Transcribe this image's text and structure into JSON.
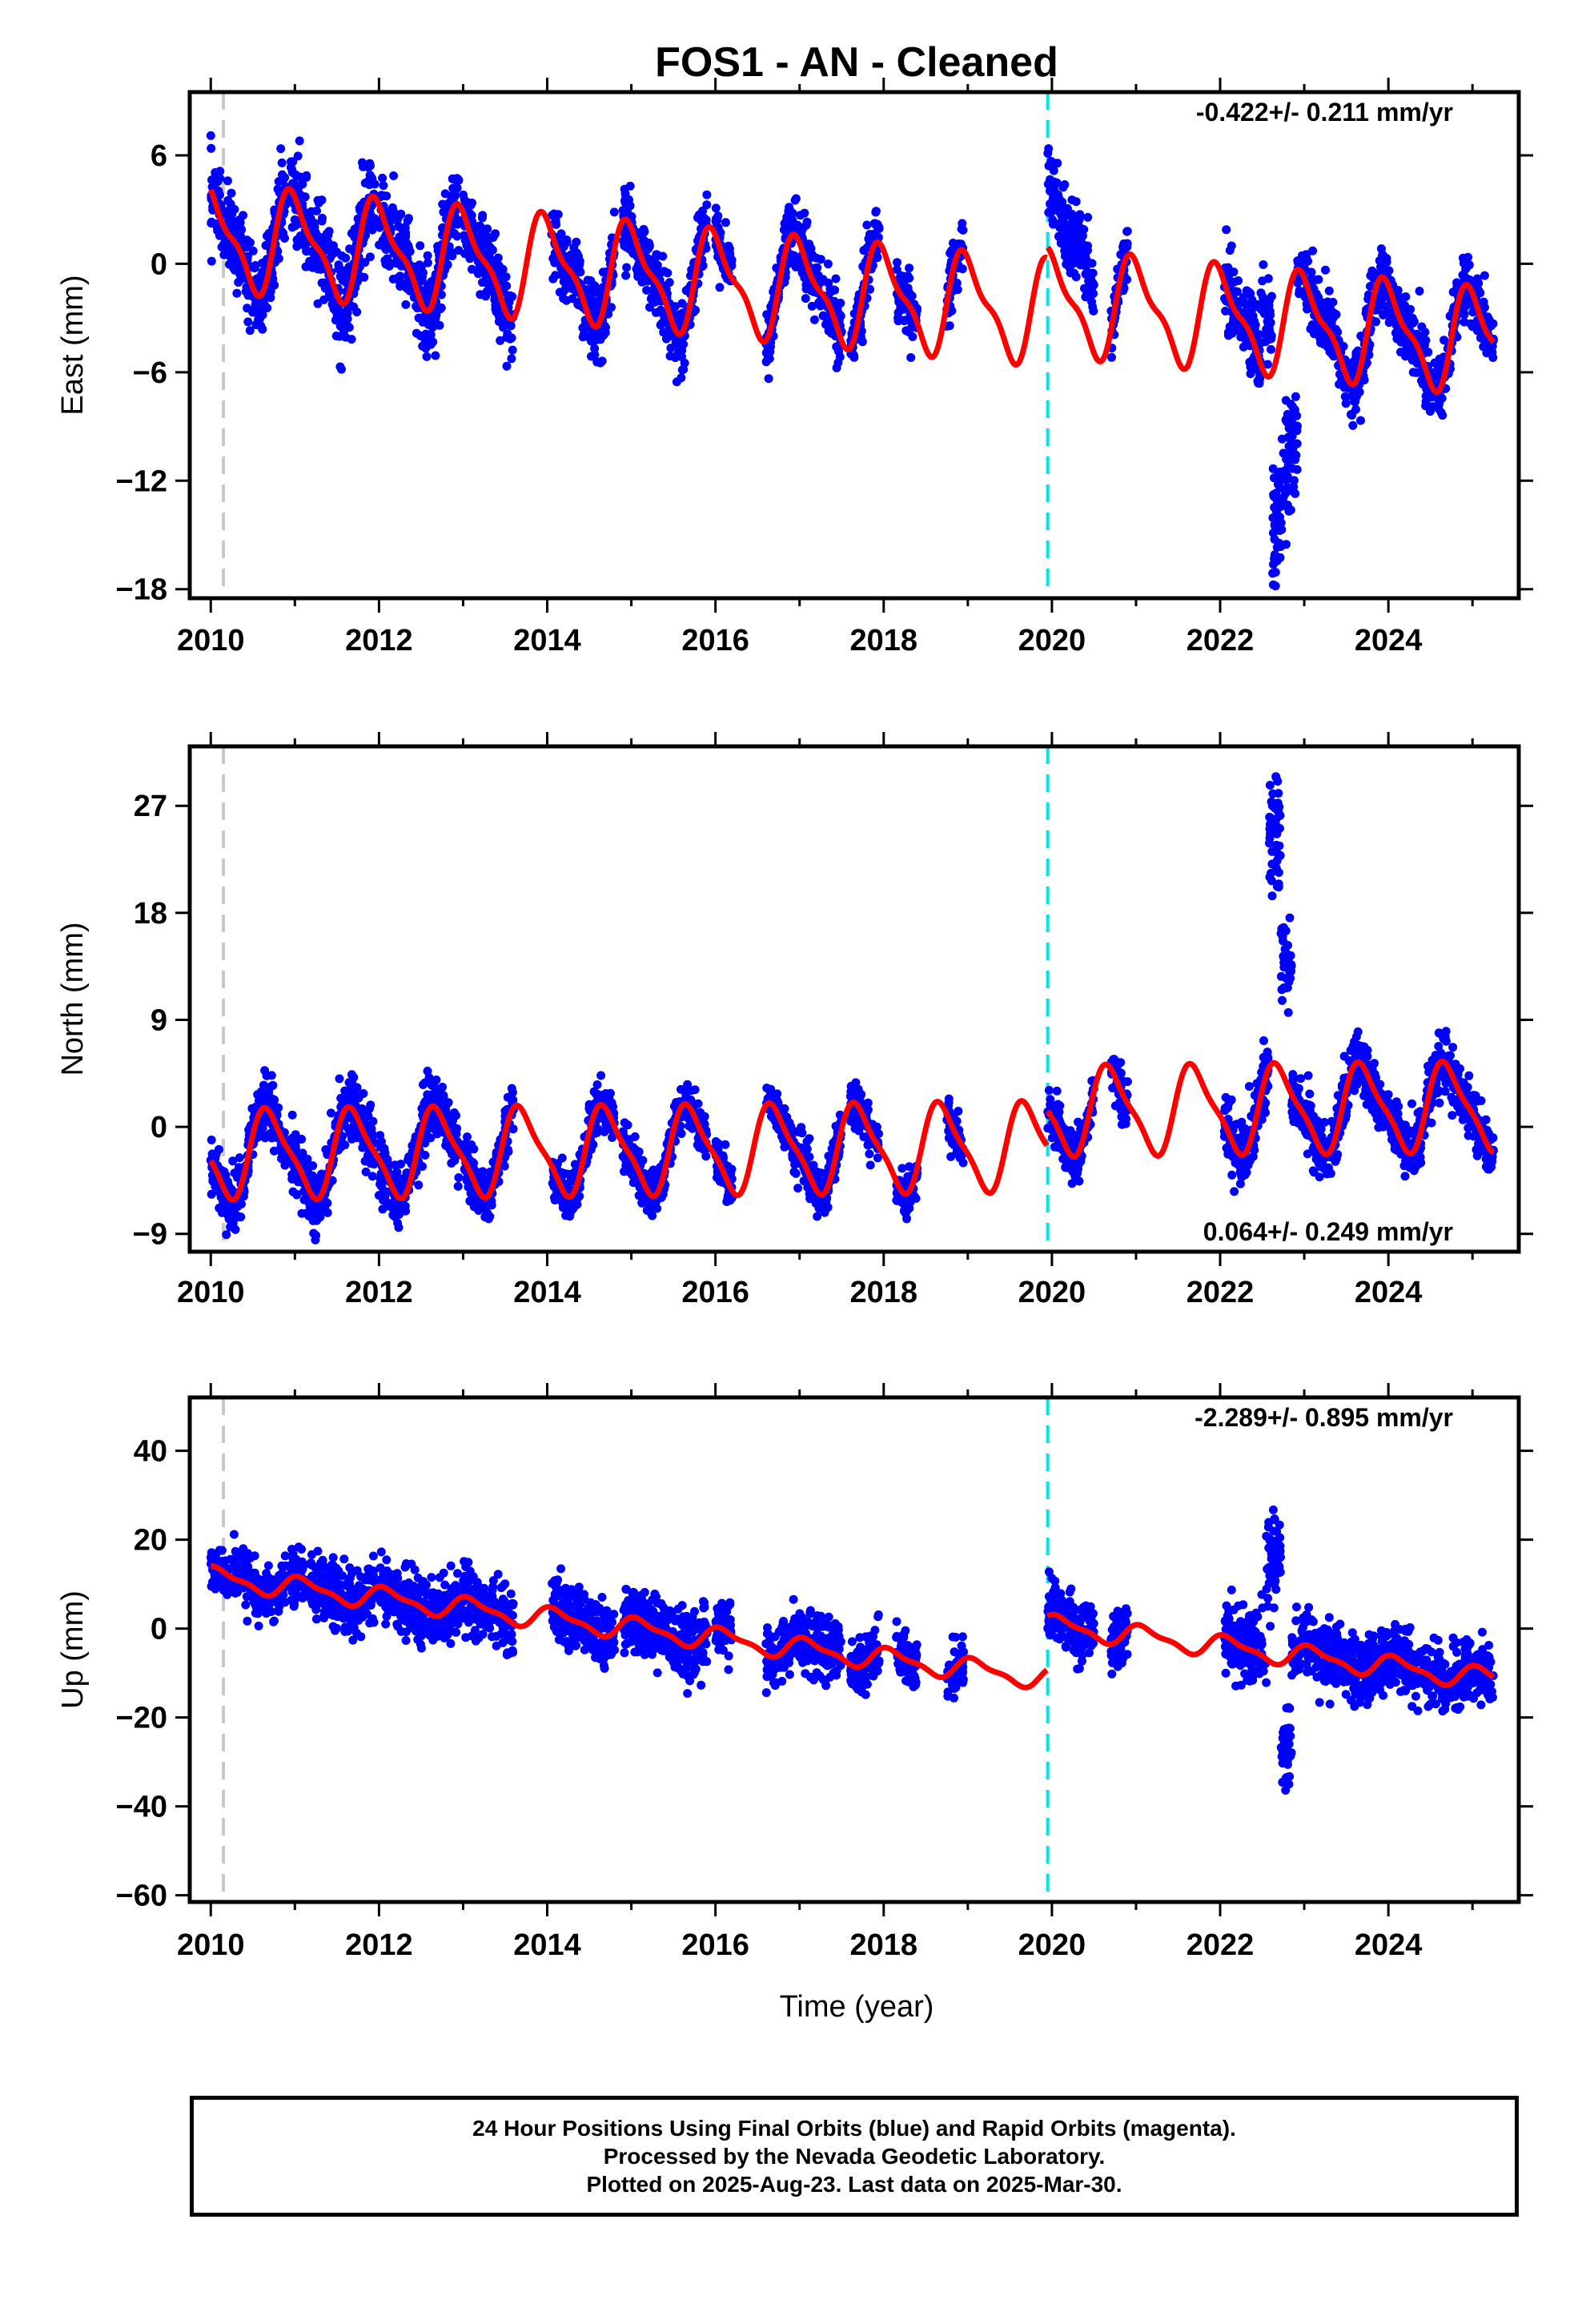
{
  "title": "FOS1  - AN - Cleaned",
  "colors": {
    "data_points": "#0000ff",
    "model_fit": "#ff0000",
    "equipment_change_line": "#c8c8c8",
    "event_line": "#00e5e5",
    "axes": "#000000"
  },
  "xaxis": {
    "label": "Time (year)",
    "range": [
      2009.75,
      2025.55
    ],
    "ticks": [
      2010,
      2012,
      2014,
      2016,
      2018,
      2020,
      2022,
      2024
    ],
    "tick_labels": [
      "2010",
      "2012",
      "2014",
      "2016",
      "2018",
      "2020",
      "2022",
      "2024"
    ]
  },
  "vertical_markers": [
    {
      "year": 2010.15,
      "color": "grey"
    },
    {
      "year": 2019.95,
      "color": "cyan"
    }
  ],
  "chart_data": [
    {
      "type": "scatter",
      "title": "FOS1  - AN - Cleaned",
      "ylabel": "East (mm)",
      "ylim": [
        -18.5,
        9.5
      ],
      "yticks": [
        6,
        0,
        -6,
        -12,
        -18
      ],
      "ytick_labels": [
        "6",
        "0",
        "−6",
        "−12",
        "−18"
      ],
      "rate_label": "-0.422+/- 0.211 mm/yr",
      "rate_position": "top-right",
      "model": {
        "offset": 1.5,
        "rate": -0.422,
        "amp_annual": 2.6,
        "amp_semi": 0.9,
        "phase": 0.25,
        "step_2020": 0.6
      },
      "data_segments": [
        [
          2010.0,
          2010.9,
          2.0
        ],
        [
          2010.95,
          2011.95,
          2.3
        ],
        [
          2012.0,
          2012.95,
          2.2
        ],
        [
          2013.0,
          2013.6,
          2.0
        ],
        [
          2014.05,
          2014.8,
          1.8
        ],
        [
          2014.9,
          2015.9,
          1.7
        ],
        [
          2016.0,
          2016.2,
          1.6
        ],
        [
          2016.6,
          2017.5,
          1.8
        ],
        [
          2017.6,
          2017.95,
          1.5
        ],
        [
          2018.15,
          2018.4,
          1.5
        ],
        [
          2018.75,
          2018.95,
          1.5
        ],
        [
          2019.95,
          2020.5,
          1.5
        ],
        [
          2020.7,
          2020.9,
          1.6
        ],
        [
          2022.05,
          2022.8,
          2.0
        ],
        [
          2022.8,
          2025.25,
          1.6
        ]
      ],
      "anomalies": [
        {
          "start": 2019.95,
          "end": 2020.55,
          "add": 4.5
        },
        {
          "start": 2022.48,
          "end": 2022.62,
          "add": 4.0
        },
        {
          "start": 2022.62,
          "end": 2022.92,
          "add": -11.5
        }
      ],
      "series": [
        {
          "name": "",
          "kind": "points",
          "color": "#0000ff"
        },
        {
          "name": "",
          "kind": "line",
          "color": "#ff0000"
        }
      ]
    },
    {
      "type": "scatter",
      "ylabel": "North (mm)",
      "ylim": [
        -10.5,
        32
      ],
      "yticks": [
        27,
        18,
        9,
        0,
        -9
      ],
      "ytick_labels": [
        "27",
        "18",
        "9",
        "0",
        "−9"
      ],
      "rate_label": "0.064+/- 0.249 mm/yr",
      "rate_position": "bottom-right",
      "model": {
        "offset": -2.3,
        "rate": 0.064,
        "amp_annual": 3.5,
        "amp_semi": 0.9,
        "phase": 0.55,
        "step_2020": 3.0
      },
      "data_segments": [
        [
          2010.0,
          2010.9,
          2.2
        ],
        [
          2010.95,
          2011.95,
          2.3
        ],
        [
          2012.0,
          2012.95,
          2.2
        ],
        [
          2013.0,
          2013.6,
          2.0
        ],
        [
          2014.05,
          2014.8,
          1.8
        ],
        [
          2014.9,
          2015.9,
          1.7
        ],
        [
          2016.0,
          2016.2,
          1.6
        ],
        [
          2016.6,
          2017.5,
          1.8
        ],
        [
          2017.6,
          2017.95,
          1.5
        ],
        [
          2018.15,
          2018.4,
          1.5
        ],
        [
          2018.75,
          2018.95,
          1.5
        ],
        [
          2019.95,
          2020.5,
          2.0
        ],
        [
          2020.7,
          2020.9,
          1.6
        ],
        [
          2022.05,
          2022.55,
          2.5
        ],
        [
          2022.55,
          2025.25,
          2.0
        ]
      ],
      "anomalies": [
        {
          "start": 2022.58,
          "end": 2022.72,
          "add": 24.0
        },
        {
          "start": 2022.72,
          "end": 2022.85,
          "add": 12.0
        }
      ],
      "series": [
        {
          "name": "",
          "kind": "points",
          "color": "#0000ff"
        },
        {
          "name": "",
          "kind": "line",
          "color": "#ff0000"
        }
      ]
    },
    {
      "type": "scatter",
      "ylabel": "Up (mm)",
      "ylim": [
        -61.5,
        52
      ],
      "yticks": [
        40,
        20,
        0,
        -20,
        -40,
        -60
      ],
      "ytick_labels": [
        "40",
        "20",
        "0",
        "−20",
        "−40",
        "−60"
      ],
      "rate_label": "-2.289+/- 0.895 mm/yr",
      "rate_position": "top-right",
      "model": {
        "offset": 11.5,
        "rate": -2.289,
        "amp_annual": 2.2,
        "amp_semi": 0.8,
        "phase": 0.15,
        "step_2020": 12.0
      },
      "data_segments": [
        [
          2010.0,
          2010.9,
          5.5
        ],
        [
          2010.95,
          2011.95,
          6.0
        ],
        [
          2012.0,
          2012.95,
          6.0
        ],
        [
          2013.0,
          2013.6,
          6.5
        ],
        [
          2014.05,
          2014.8,
          6.5
        ],
        [
          2014.9,
          2015.9,
          6.5
        ],
        [
          2016.0,
          2016.2,
          6.0
        ],
        [
          2016.6,
          2017.5,
          6.0
        ],
        [
          2017.6,
          2017.95,
          5.5
        ],
        [
          2018.15,
          2018.4,
          5.5
        ],
        [
          2018.75,
          2018.95,
          5.5
        ],
        [
          2019.95,
          2020.5,
          6.0
        ],
        [
          2020.7,
          2020.9,
          6.5
        ],
        [
          2022.05,
          2022.8,
          7.0
        ],
        [
          2022.8,
          2025.25,
          6.5
        ]
      ],
      "anomalies": [
        {
          "start": 2022.55,
          "end": 2022.72,
          "add": 30.0
        },
        {
          "start": 2022.72,
          "end": 2022.85,
          "add": -25.0
        }
      ],
      "series": [
        {
          "name": "",
          "kind": "points",
          "color": "#0000ff"
        },
        {
          "name": "",
          "kind": "line",
          "color": "#ff0000"
        }
      ]
    }
  ],
  "footer": {
    "line1": "24 Hour Positions Using Final Orbits (blue) and Rapid Orbits (magenta).",
    "line2": "Processed by the Nevada Geodetic Laboratory.",
    "line3": "Plotted on 2025-Aug-23. Last data on 2025-Mar-30."
  }
}
